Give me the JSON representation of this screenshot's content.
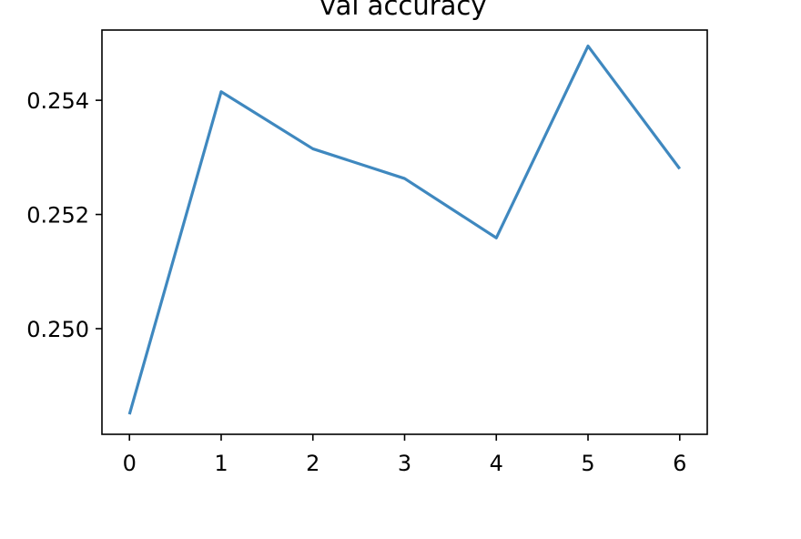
{
  "chart_data": {
    "type": "line",
    "title": "val accuracy",
    "xlabel": "",
    "ylabel": "",
    "x": [
      0,
      1,
      2,
      3,
      4,
      5,
      6
    ],
    "series": [
      {
        "values": [
          0.2485,
          0.25415,
          0.25315,
          0.25263,
          0.25159,
          0.25495,
          0.2528
        ],
        "color": "#3f88bf"
      }
    ],
    "x_ticks": [
      "0",
      "1",
      "2",
      "3",
      "4",
      "5",
      "6"
    ],
    "y_ticks": [
      "0.250",
      "0.252",
      "0.254"
    ],
    "xlim": [
      -0.3,
      6.3
    ],
    "ylim": [
      0.24815,
      0.25523
    ],
    "grid": false
  }
}
